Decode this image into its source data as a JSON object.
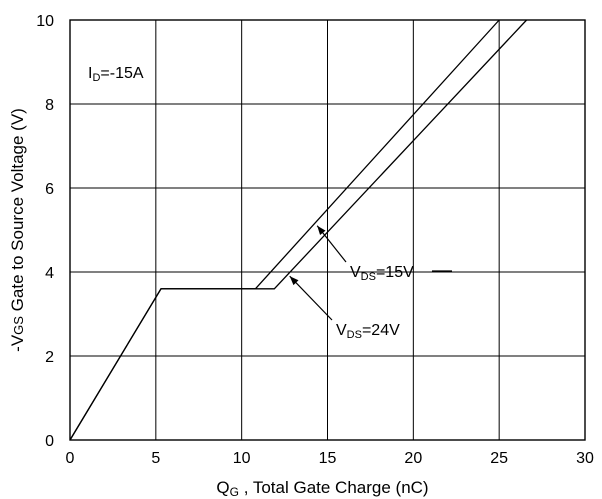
{
  "chart_data": {
    "type": "line",
    "title": "",
    "xlabel": {
      "main": "Q",
      "sub": "G",
      "rest": " , Total Gate Charge (nC)"
    },
    "ylabel": {
      "prefix": "-V",
      "sub": "GS",
      "rest": "  Gate to Source Voltage (V)"
    },
    "xlim": [
      0,
      30
    ],
    "ylim": [
      0,
      10
    ],
    "xticks": [
      0,
      5,
      10,
      15,
      20,
      25,
      30
    ],
    "yticks": [
      0,
      2,
      4,
      6,
      8,
      10
    ],
    "grid": true,
    "condition": {
      "main": "I",
      "sub": "D",
      "rest": "=-15A"
    },
    "series": [
      {
        "name": "VDS=15V",
        "points": [
          [
            0,
            0
          ],
          [
            5.3,
            3.6
          ],
          [
            10.8,
            3.6
          ],
          [
            25,
            10
          ]
        ]
      },
      {
        "name": "VDS=24V",
        "points": [
          [
            0,
            0
          ],
          [
            5.3,
            3.6
          ],
          [
            11.9,
            3.6
          ],
          [
            26.6,
            10
          ]
        ]
      }
    ],
    "annotations": [
      {
        "main": "V",
        "sub": "DS",
        "rest": "=15V",
        "target": [
          14.4,
          5.1
        ]
      },
      {
        "main": "V",
        "sub": "DS",
        "rest": "=24V",
        "target": [
          12.8,
          3.9
        ]
      }
    ],
    "color": "#000000"
  }
}
